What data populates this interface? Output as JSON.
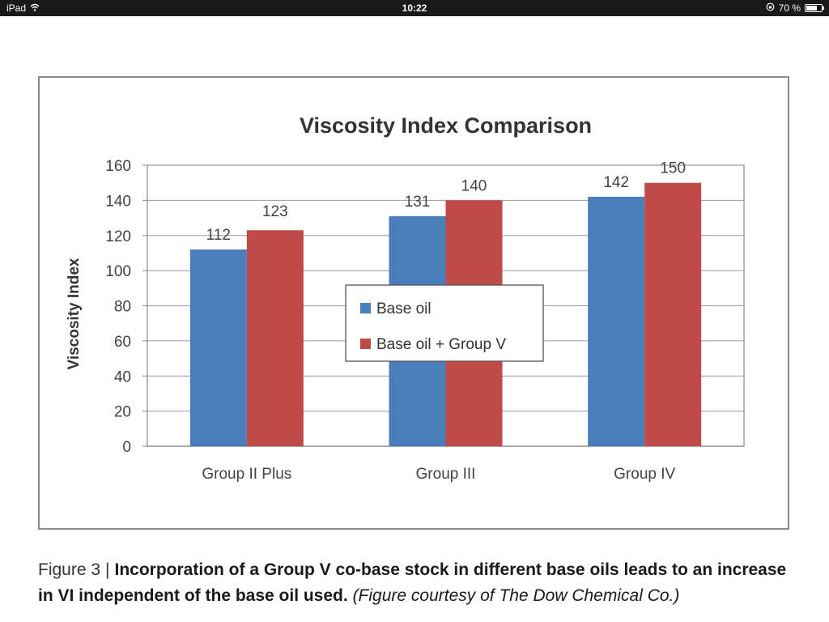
{
  "status_bar": {
    "device": "iPad",
    "time": "10:22",
    "battery_text": "70 %",
    "battery_level": 0.7
  },
  "caption": {
    "label": "Figure 3",
    "separator": "|",
    "bold_text": "Incorporation of a Group V co-base stock in different base oils leads to an increase in VI independent of the base oil used.",
    "credit": "(Figure courtesy of The Dow Chemical Co.)"
  },
  "chart_data": {
    "type": "bar",
    "title": "Viscosity Index Comparison",
    "xlabel": "",
    "ylabel": "Viscosity Index",
    "categories": [
      "Group II Plus",
      "Group III",
      "Group IV"
    ],
    "series": [
      {
        "name": "Base oil",
        "values": [
          112,
          131,
          142
        ],
        "color": "#4a7ebb"
      },
      {
        "name": "Base oil + Group V",
        "values": [
          123,
          140,
          150
        ],
        "color": "#be4b48"
      }
    ],
    "ylim": [
      0,
      160
    ],
    "yticks": [
      0,
      20,
      40,
      60,
      80,
      100,
      120,
      140,
      160
    ],
    "grid": true,
    "legend_position": "center",
    "data_labels": true
  }
}
